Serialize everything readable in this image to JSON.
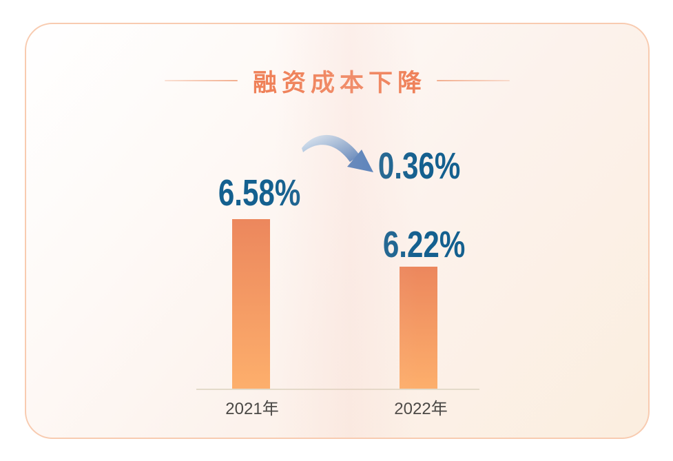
{
  "card": {
    "accent_color": "#EF8159",
    "border_color": "#F8CBB0"
  },
  "chart_data": {
    "type": "bar",
    "title": "融资成本下降",
    "categories": [
      "2021年",
      "2022年"
    ],
    "values": [
      6.58,
      6.22
    ],
    "value_labels": [
      "6.58%",
      "6.22%"
    ],
    "delta_label": "0.36%",
    "delta_icon": "curved-decrease-arrow",
    "ylim": [
      5.3,
      7
    ],
    "grid": "off",
    "legend": "off",
    "xlabel": "",
    "ylabel": "",
    "colors": {
      "bar_top": "#EC875D",
      "bar_bottom": "#FDAF6C",
      "value_text": "#14608F",
      "category_text": "#4A4845",
      "axis_line": "#E3DACA",
      "arrow_light": "#E3EDF6",
      "arrow_dark": "#4679B9"
    }
  }
}
